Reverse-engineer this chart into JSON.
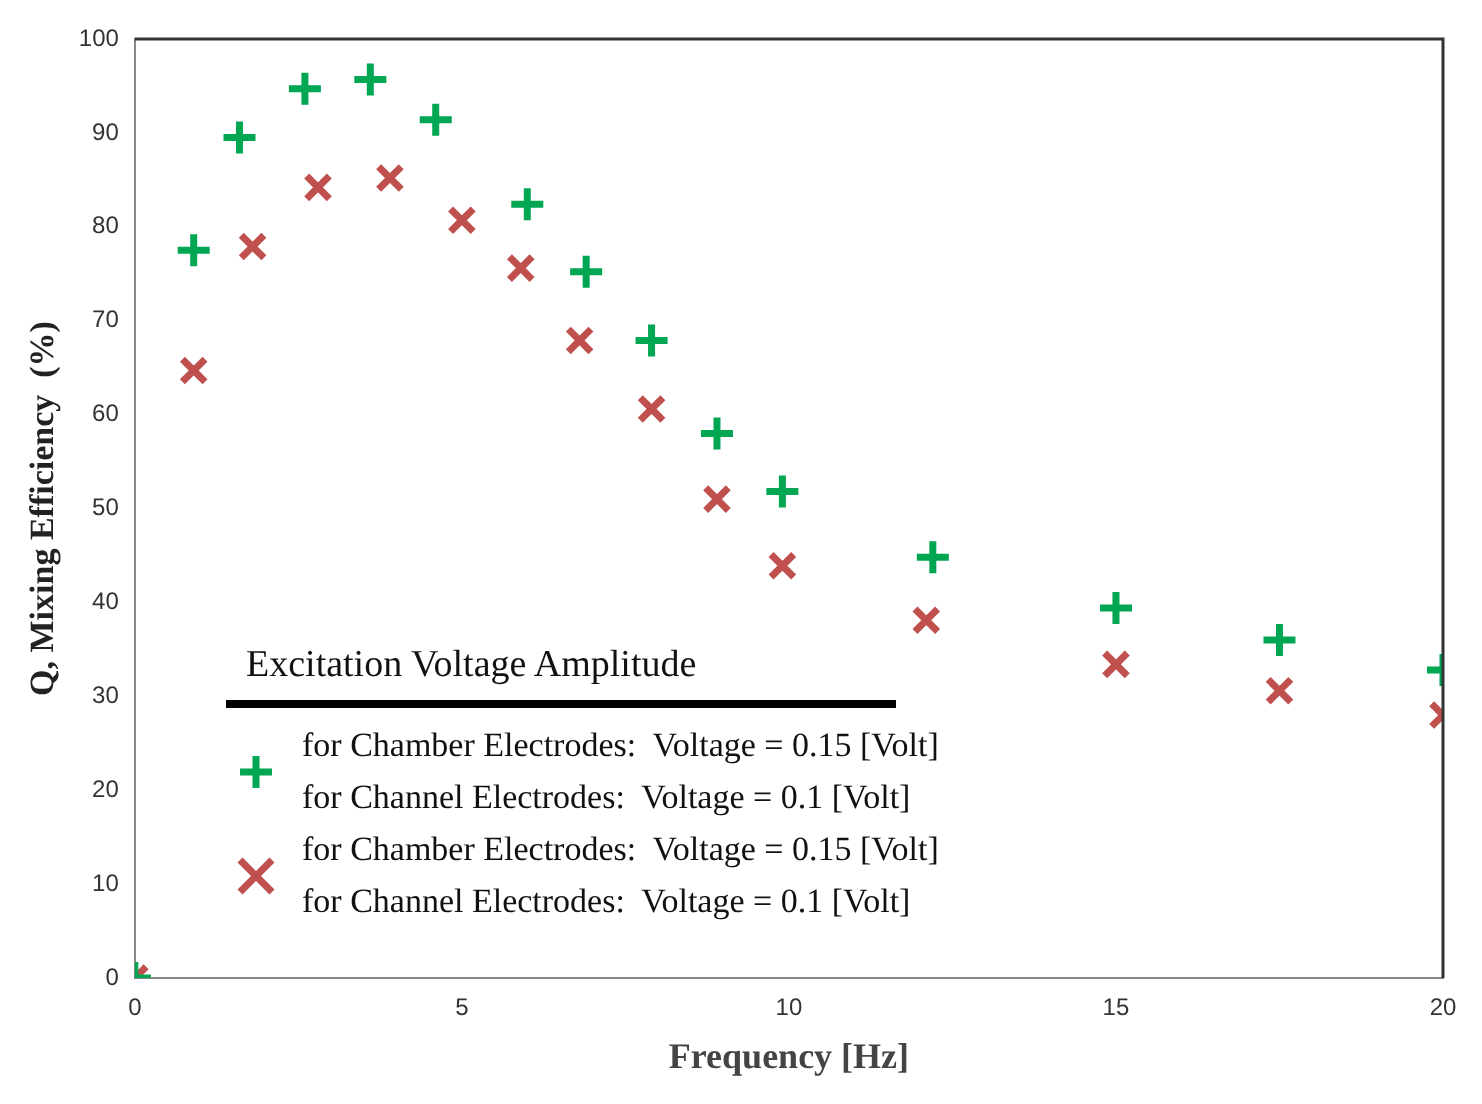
{
  "chart_data": {
    "type": "scatter",
    "xlabel": "Frequency [Hz]",
    "ylabel": "Q, Mixing Efficiency  (%)",
    "legend_title": "Excitation Voltage Amplitude",
    "legend": "bottom left",
    "grid": false,
    "xlim": [
      0,
      20
    ],
    "xticks": [
      0,
      5,
      10,
      15,
      20
    ],
    "ylim": [
      0,
      100
    ],
    "yticks": [
      0,
      10,
      20,
      30,
      40,
      50,
      60,
      70,
      80,
      90,
      100
    ],
    "series": [
      {
        "name": "for Chamber Electrodes:  Voltage = 0.15 [Volt]\nfor Channel Electrodes:  Voltage = 0.1 [Volt]",
        "color": "#00a651",
        "marker": "cross",
        "x": [
          0,
          0.9,
          1.6,
          2.6,
          3.6,
          4.6,
          6.0,
          6.9,
          7.9,
          8.9,
          9.9,
          12.2,
          15.0,
          17.5,
          20
        ],
        "values": [
          0,
          77.5,
          89.5,
          94.7,
          95.7,
          91.4,
          82.4,
          75.2,
          67.9,
          58.0,
          51.8,
          44.8,
          39.4,
          36,
          32.8
        ]
      },
      {
        "name": "for Chamber Electrodes:  Voltage = 0.15 [Volt]\nfor Channel Electrodes:  Voltage = 0.1 [Volt]",
        "color": "#c0504d",
        "marker": "x",
        "x": [
          0,
          0.9,
          1.8,
          2.8,
          3.9,
          5.0,
          5.9,
          6.8,
          7.9,
          8.9,
          9.9,
          12.1,
          15.0,
          17.5,
          20
        ],
        "values": [
          0,
          64.7,
          77.9,
          84.2,
          85.2,
          80.7,
          75.6,
          67.9,
          60.6,
          51,
          43.9,
          38.1,
          33.4,
          30.6,
          28
        ]
      }
    ]
  }
}
